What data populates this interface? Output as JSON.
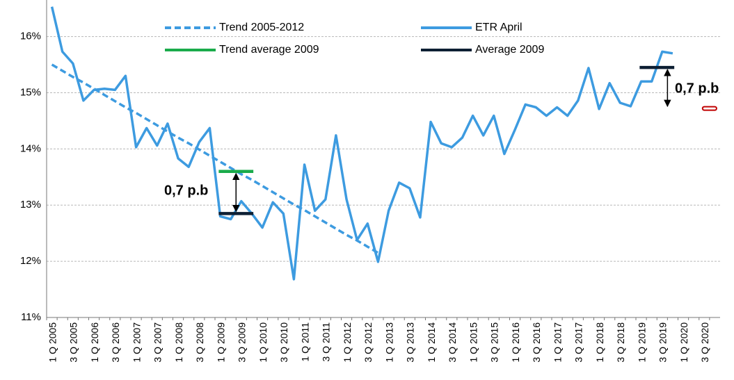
{
  "chart_data": {
    "type": "line",
    "categories": [
      "1 Q 2005",
      null,
      "3 Q 2005",
      null,
      "1 Q 2006",
      null,
      "3 Q 2006",
      null,
      "1 Q 2007",
      null,
      "3 Q 2007",
      null,
      "1 Q 2008",
      null,
      "3 Q 2008",
      null,
      "1 Q 2009",
      null,
      "3 Q 2009",
      null,
      "1 Q 2010",
      null,
      "3 Q 2010",
      null,
      "1 Q 2011",
      null,
      "3 Q 2011",
      null,
      "1 Q 2012",
      null,
      "3 Q 2012",
      null,
      "1 Q 2013",
      null,
      "3 Q 2013",
      null,
      "1 Q 2014",
      null,
      "3 Q 2014",
      null,
      "1 Q 2015",
      null,
      "3 Q 2015",
      null,
      "1 Q 2016",
      null,
      "3 Q 2016",
      null,
      "1 Q 2017",
      null,
      "3 Q 2017",
      null,
      "1 Q 2018",
      null,
      "3 Q 2018",
      null,
      "1 Q 2019",
      null,
      "3 Q 2019",
      null,
      "1 Q 2020",
      null,
      "3 Q 2020",
      null
    ],
    "series": [
      {
        "name": "Trend 2005-2012",
        "color": "#3d9be0",
        "dashed": true,
        "values": [
          15.5,
          15.39,
          15.28,
          15.18,
          15.07,
          14.96,
          14.85,
          14.74,
          14.64,
          14.53,
          14.42,
          14.31,
          14.2,
          14.1,
          13.99,
          13.88,
          13.77,
          13.66,
          13.55,
          13.45,
          13.34,
          13.23,
          13.12,
          13.01,
          12.91,
          12.8,
          12.69,
          12.58,
          12.47,
          12.37,
          12.26,
          12.15,
          null,
          null,
          null,
          null,
          null,
          null,
          null,
          null,
          null,
          null,
          null,
          null,
          null,
          null,
          null,
          null,
          null,
          null,
          null,
          null,
          null,
          null,
          null,
          null,
          null,
          null,
          null,
          null,
          null,
          null,
          null,
          null
        ]
      },
      {
        "name": "ETR April",
        "color": "#3d9be0",
        "values": [
          16.53,
          15.73,
          15.52,
          14.86,
          15.05,
          15.07,
          15.05,
          15.3,
          14.03,
          14.37,
          14.06,
          14.45,
          13.83,
          13.68,
          14.12,
          14.37,
          12.8,
          12.75,
          13.07,
          12.85,
          12.6,
          13.05,
          12.85,
          11.68,
          13.72,
          12.9,
          13.1,
          14.24,
          13.1,
          12.38,
          12.67,
          11.99,
          12.9,
          13.4,
          13.3,
          12.78,
          14.48,
          14.1,
          14.03,
          14.2,
          14.59,
          14.24,
          14.59,
          13.91,
          14.34,
          14.79,
          14.74,
          14.59,
          14.74,
          14.59,
          14.86,
          15.44,
          14.71,
          15.17,
          14.82,
          14.76,
          15.2,
          15.2,
          15.73,
          15.7,
          null,
          null,
          null,
          null
        ]
      },
      {
        "name": "Trend average 2009",
        "color": "#1aab4b",
        "values": [
          null,
          null,
          null,
          null,
          null,
          null,
          null,
          null,
          null,
          null,
          null,
          null,
          null,
          null,
          null,
          null,
          13.6,
          13.6,
          13.6,
          13.6,
          null,
          null,
          null,
          null,
          null,
          null,
          null,
          null,
          null,
          null,
          null,
          null,
          null,
          null,
          null,
          null,
          null,
          null,
          null,
          null,
          null,
          null,
          null,
          null,
          null,
          null,
          null,
          null,
          null,
          null,
          null,
          null,
          null,
          null,
          null,
          null,
          null,
          null,
          null,
          null,
          null,
          null,
          null,
          null
        ]
      },
      {
        "name": "Average 2009",
        "color": "#0d1f33",
        "values": [
          null,
          null,
          null,
          null,
          null,
          null,
          null,
          null,
          null,
          null,
          null,
          null,
          null,
          null,
          null,
          null,
          12.85,
          12.85,
          12.85,
          12.85,
          null,
          null,
          null,
          null,
          null,
          null,
          null,
          null,
          null,
          null,
          null,
          null,
          null,
          null,
          null,
          null,
          null,
          null,
          null,
          null,
          null,
          null,
          null,
          null,
          null,
          null,
          null,
          null,
          null,
          null,
          null,
          null,
          null,
          null,
          null,
          null,
          15.45,
          15.45,
          15.45,
          15.45,
          null,
          null,
          null,
          null
        ]
      },
      {
        "color": "#c00000",
        "outline": true,
        "values": [
          null,
          null,
          null,
          null,
          null,
          null,
          null,
          null,
          null,
          null,
          null,
          null,
          null,
          null,
          null,
          null,
          null,
          null,
          null,
          null,
          null,
          null,
          null,
          null,
          null,
          null,
          null,
          null,
          null,
          null,
          null,
          null,
          null,
          null,
          null,
          null,
          null,
          null,
          null,
          null,
          null,
          null,
          null,
          null,
          null,
          null,
          null,
          null,
          null,
          null,
          null,
          null,
          null,
          null,
          null,
          null,
          null,
          null,
          null,
          null,
          null,
          null,
          14.72,
          14.72
        ]
      }
    ],
    "annotations": [
      "0,7 p.b",
      "0,7 p.b"
    ],
    "ylim": [
      11,
      16.65
    ],
    "yticks": [
      {
        "value": 11,
        "label": "11%"
      },
      {
        "value": 12,
        "label": "12%"
      },
      {
        "value": 13,
        "label": "13%"
      },
      {
        "value": 14,
        "label": "14%"
      },
      {
        "value": 15,
        "label": "15%"
      },
      {
        "value": 16,
        "label": "16%"
      }
    ],
    "grid": true
  }
}
